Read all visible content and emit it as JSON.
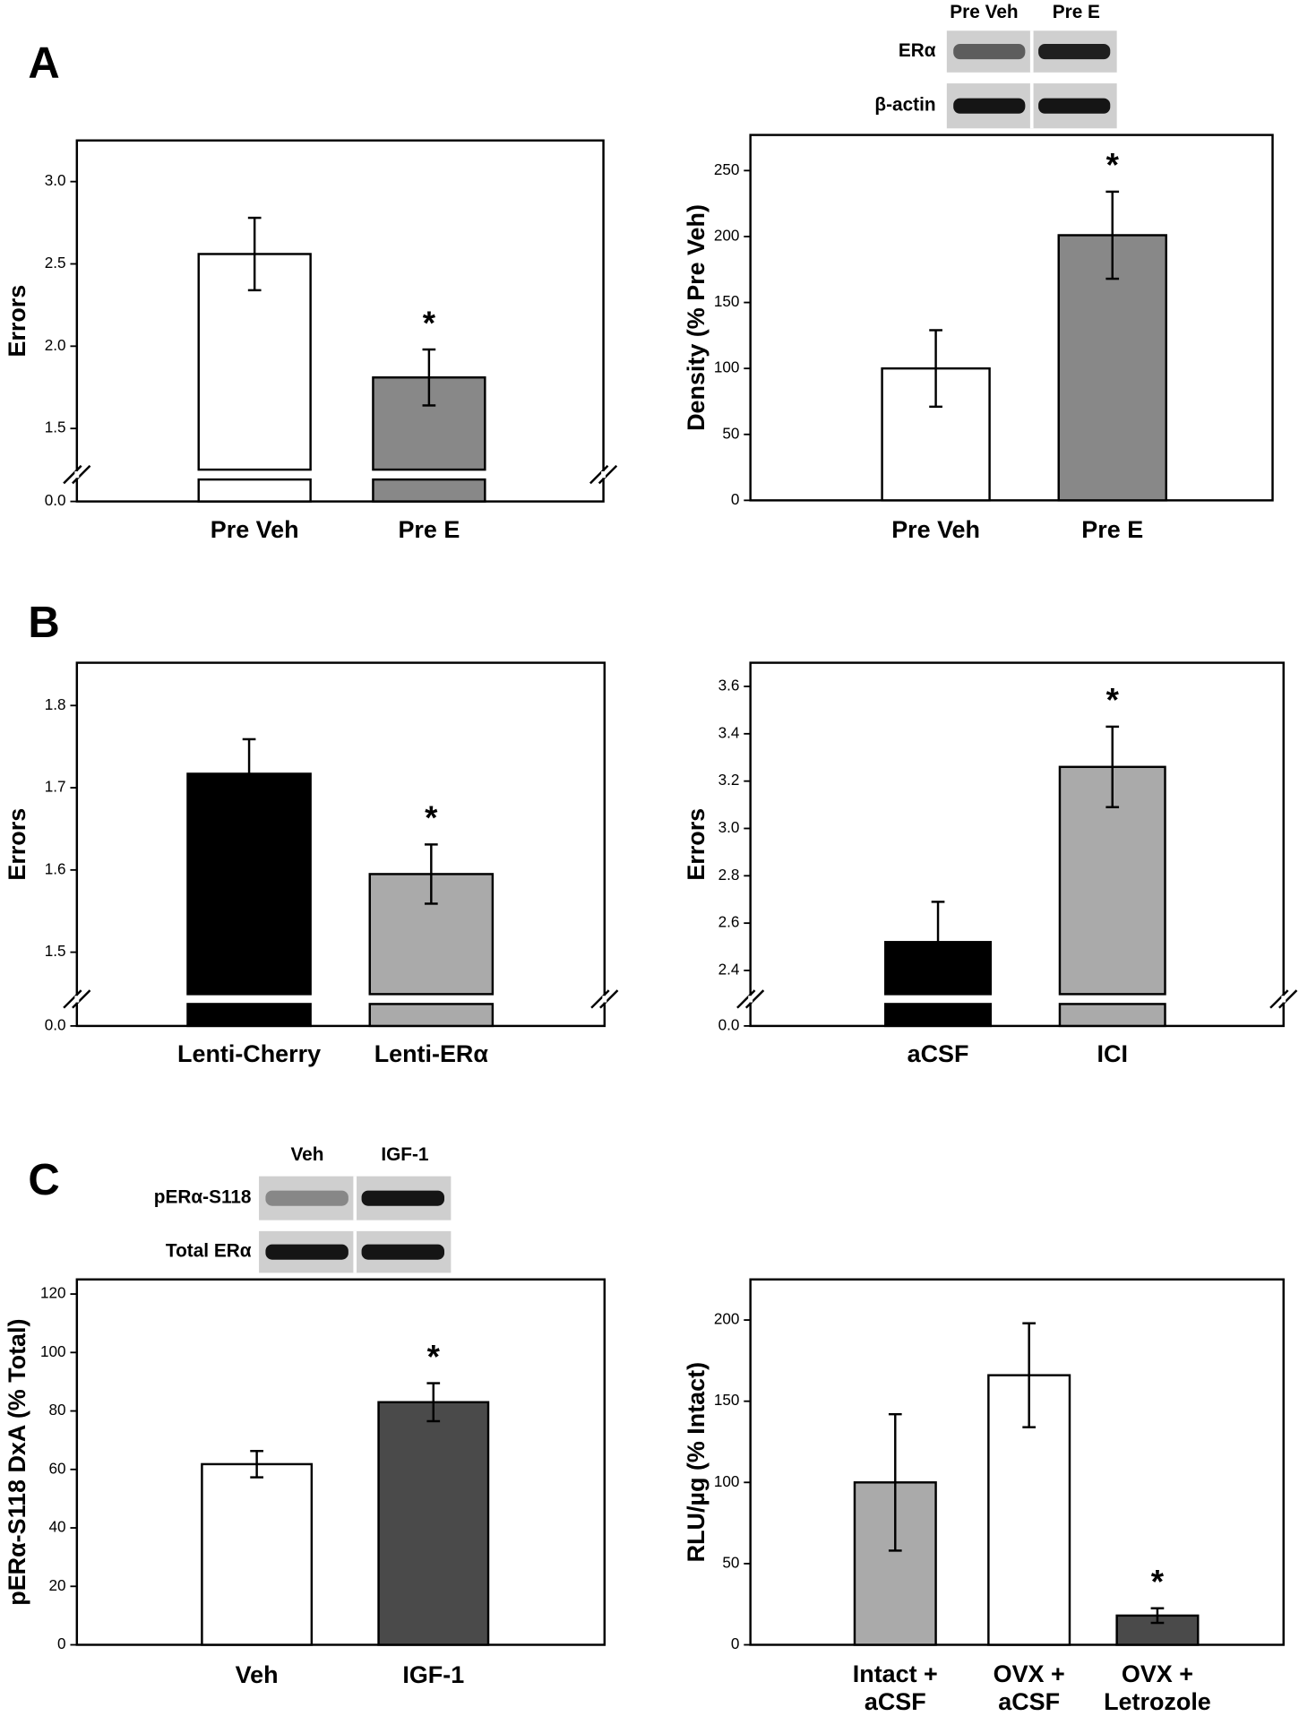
{
  "chart_data": [
    {
      "type": "bar",
      "panel": "A",
      "ylabel": "Errors",
      "categories": [
        "Pre Veh",
        "Pre E"
      ],
      "values": [
        2.56,
        1.81
      ],
      "errors": [
        0.22,
        0.17
      ],
      "markers": [
        null,
        "*"
      ],
      "colors": [
        "#ffffff",
        "#888888"
      ],
      "ylim": [
        0,
        3.25
      ],
      "ybreak": [
        0.15,
        1.25
      ],
      "yticks": [
        {
          "value": 0,
          "label": "0.0"
        },
        1.5,
        {
          "value": 2,
          "label": "2.0"
        },
        2.5,
        {
          "value": 3,
          "label": "3.0"
        }
      ]
    },
    {
      "type": "bar",
      "ylabel": "Density (% Pre Veh)",
      "blot": {
        "columns": [
          "Pre Veh",
          "Pre E"
        ],
        "rows": [
          "ERα",
          "β-actin"
        ]
      },
      "categories": [
        "Pre Veh",
        "Pre E"
      ],
      "values": [
        100,
        201
      ],
      "errors": [
        29,
        33
      ],
      "markers": [
        null,
        "*"
      ],
      "colors": [
        "#ffffff",
        "#888888"
      ],
      "ylim": [
        0,
        277
      ],
      "yticks": [
        0,
        50,
        100,
        150,
        200,
        250
      ]
    },
    {
      "type": "bar",
      "panel": "B",
      "ylabel": "Errors",
      "categories": [
        "Lenti-Cherry",
        "Lenti-ERα"
      ],
      "values": [
        1.717,
        1.595
      ],
      "errors": [
        0.042,
        0.036
      ],
      "markers": [
        null,
        "*"
      ],
      "colors": [
        "#000000",
        "#aaaaaa"
      ],
      "ylim": [
        0,
        1.852
      ],
      "ybreak": [
        0.15,
        1.449
      ],
      "yticks": [
        {
          "value": 0,
          "label": "0.0"
        },
        1.5,
        1.6,
        1.7,
        1.8
      ]
    },
    {
      "type": "bar",
      "ylabel": "Errors",
      "categories": [
        "aCSF",
        "ICI"
      ],
      "values": [
        2.52,
        3.26
      ],
      "errors": [
        0.17,
        0.17
      ],
      "markers": [
        null,
        "*"
      ],
      "colors": [
        "#000000",
        "#aaaaaa"
      ],
      "ylim": [
        0,
        3.7
      ],
      "ybreak": [
        0.3,
        2.3
      ],
      "yticks": [
        {
          "value": 0,
          "label": "0.0"
        },
        2.4,
        2.6,
        2.8,
        {
          "value": 3,
          "label": "3.0"
        },
        3.2,
        3.4,
        3.6
      ]
    },
    {
      "type": "bar",
      "panel": "C",
      "ylabel": "pERα-S118 DxA (% Total)",
      "blot": {
        "columns": [
          "Veh",
          "IGF-1"
        ],
        "rows": [
          "pERα-S118",
          "Total ERα"
        ]
      },
      "categories": [
        "Veh",
        "IGF-1"
      ],
      "values": [
        61.8,
        83
      ],
      "errors": [
        4.5,
        6.5
      ],
      "markers": [
        null,
        "*"
      ],
      "colors": [
        "#ffffff",
        "#4a4a4a"
      ],
      "ylim": [
        0,
        125
      ],
      "yticks": [
        0,
        20,
        40,
        60,
        80,
        100,
        120
      ]
    },
    {
      "type": "bar",
      "ylabel": "RLU/µg (% Intact)",
      "categories": [
        "Intact +\naCSF",
        "OVX +\naCSF",
        "OVX +\nLetrozole"
      ],
      "values": [
        100,
        166,
        18
      ],
      "errors": [
        42,
        32,
        4.5
      ],
      "markers": [
        null,
        null,
        "*"
      ],
      "colors": [
        "#aaaaaa",
        "#ffffff",
        "#4a4a4a"
      ],
      "ylim": [
        0,
        225
      ],
      "yticks": [
        0,
        50,
        100,
        150,
        200
      ]
    }
  ]
}
